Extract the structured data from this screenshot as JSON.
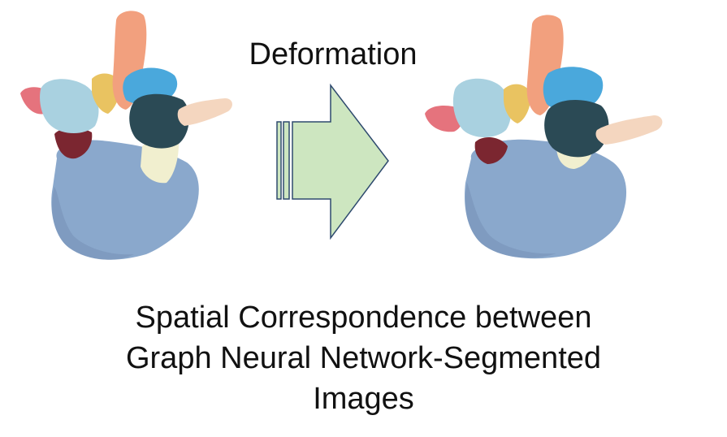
{
  "arrow_label": "Deformation",
  "caption": {
    "line1": "Spatial Correspondence between",
    "line2": "Graph Neural Network-Segmented",
    "line3": "Images"
  },
  "colors": {
    "body": "#8aa8cc",
    "spinous": "#f2a07e",
    "arrow_fill": "#cde6c0",
    "arrow_stroke": "#2e4a6e",
    "dark_teal": "#2b4a55",
    "light_blue": "#a9d1e0",
    "sky_blue": "#4aa8dc",
    "cream": "#f1efcf",
    "pink": "#e5737d",
    "maroon": "#7b2630",
    "yellow": "#e9c361",
    "peach": "#f4d6bf"
  }
}
